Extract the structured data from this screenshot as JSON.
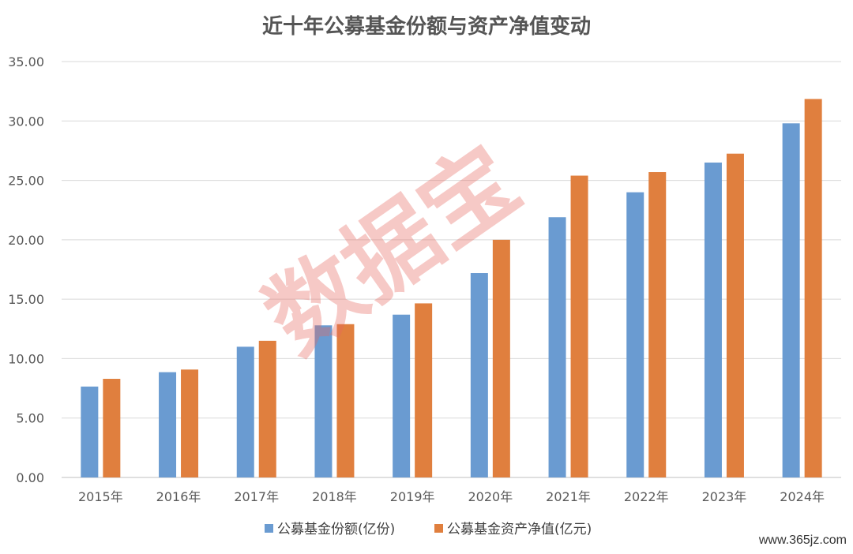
{
  "chart_data": {
    "type": "bar",
    "title": "近十年公募基金份额与资产净值变动",
    "categories": [
      "2015年",
      "2016年",
      "2017年",
      "2018年",
      "2019年",
      "2020年",
      "2021年",
      "2022年",
      "2023年",
      "2024年"
    ],
    "series": [
      {
        "name": "公募基金份额(亿份)",
        "color": "#6A9BD1",
        "values": [
          7.65,
          8.86,
          11.0,
          12.8,
          13.7,
          17.2,
          21.9,
          24.0,
          26.5,
          29.8
        ]
      },
      {
        "name": "公募基金资产净值(亿元)",
        "color": "#E07F3E",
        "values": [
          8.3,
          9.08,
          11.5,
          12.9,
          14.65,
          20.0,
          25.4,
          25.7,
          27.25,
          31.85
        ]
      }
    ],
    "ylim": [
      0,
      35
    ],
    "yticks": [
      "0.00",
      "5.00",
      "10.00",
      "15.00",
      "20.00",
      "25.00",
      "30.00",
      "35.00"
    ],
    "grid": true,
    "legend_position": "bottom"
  },
  "watermark": {
    "text": "数据宝",
    "color": "#E8675F"
  },
  "site_mark": "www.365jz.com"
}
